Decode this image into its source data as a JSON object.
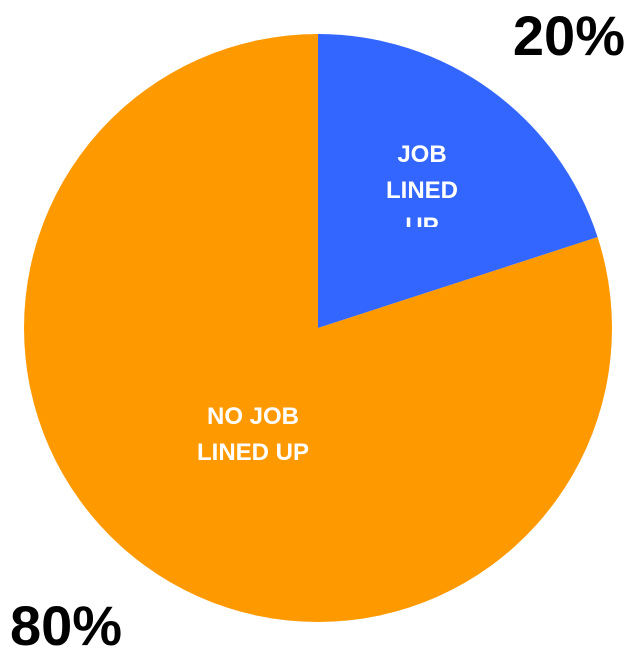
{
  "chart_data": {
    "type": "pie",
    "slices": [
      {
        "label_lines": [
          "JOB",
          "LINED",
          "UP"
        ],
        "value": 20,
        "value_label": "20%",
        "color": "#3366ff"
      },
      {
        "label_lines": [
          "NO JOB",
          "LINED UP"
        ],
        "value": 80,
        "value_label": "80%",
        "color": "#ff9900"
      }
    ],
    "start_angle": "12 o'clock",
    "direction": "clockwise",
    "legend": "none"
  }
}
